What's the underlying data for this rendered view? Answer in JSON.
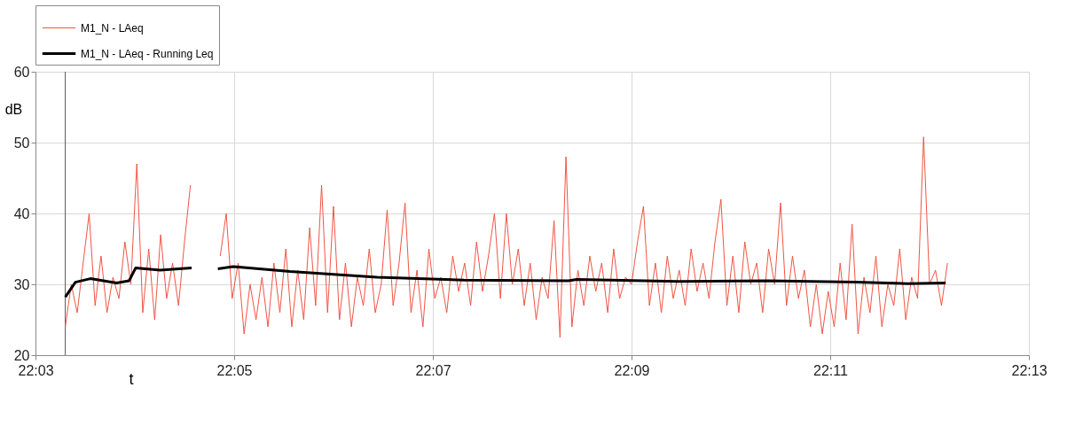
{
  "chart_data": {
    "type": "line",
    "xlabel": "t",
    "ylabel": "dB",
    "xlim": [
      22.05,
      22.216667
    ],
    "ylim": [
      20,
      60
    ],
    "xticks": [
      {
        "value": 22.05,
        "label": "22:03"
      },
      {
        "value": 22.083333,
        "label": "22:05"
      },
      {
        "value": 22.116667,
        "label": "22:07"
      },
      {
        "value": 22.15,
        "label": "22:09"
      },
      {
        "value": 22.183333,
        "label": "22:11"
      },
      {
        "value": 22.216667,
        "label": "22:13"
      }
    ],
    "yticks": [
      20,
      30,
      40,
      50,
      60
    ],
    "grid": true,
    "legend": "top",
    "line_style": "solid",
    "marker": "none",
    "ref_lines": [
      {
        "axis": "x",
        "value": 22.055,
        "color": "#555555"
      }
    ],
    "series": [
      {
        "name": "M1_N - LAeq",
        "color": "#f05545",
        "x": [
          22.055,
          22.056,
          22.057,
          22.058,
          22.059,
          22.06,
          22.061,
          22.062,
          22.063,
          22.064,
          22.065,
          22.066,
          22.067,
          22.068,
          22.069,
          22.07,
          22.071,
          22.072,
          22.073,
          22.074,
          22.075,
          22.076,
          22.078,
          22.081,
          22.082,
          22.083,
          22.084,
          22.085,
          22.086,
          22.087,
          22.088,
          22.089,
          22.09,
          22.091,
          22.092,
          22.093,
          22.094,
          22.095,
          22.096,
          22.097,
          22.098,
          22.099,
          22.1,
          22.101,
          22.102,
          22.103,
          22.104,
          22.105,
          22.106,
          22.107,
          22.108,
          22.109,
          22.11,
          22.111,
          22.112,
          22.113,
          22.114,
          22.115,
          22.116,
          22.117,
          22.118,
          22.119,
          22.12,
          22.121,
          22.122,
          22.123,
          22.124,
          22.125,
          22.126,
          22.127,
          22.128,
          22.129,
          22.13,
          22.131,
          22.132,
          22.133,
          22.134,
          22.135,
          22.136,
          22.137,
          22.138,
          22.139,
          22.14,
          22.141,
          22.142,
          22.143,
          22.144,
          22.145,
          22.146,
          22.147,
          22.148,
          22.149,
          22.15,
          22.151,
          22.152,
          22.153,
          22.154,
          22.155,
          22.156,
          22.157,
          22.158,
          22.159,
          22.16,
          22.161,
          22.162,
          22.163,
          22.164,
          22.165,
          22.166,
          22.167,
          22.168,
          22.169,
          22.17,
          22.171,
          22.172,
          22.173,
          22.174,
          22.175,
          22.176,
          22.177,
          22.178,
          22.179,
          22.18,
          22.181,
          22.182,
          22.183,
          22.184,
          22.185,
          22.186,
          22.187,
          22.188,
          22.189,
          22.19,
          22.191,
          22.192,
          22.193,
          22.194,
          22.195,
          22.196,
          22.197,
          22.198,
          22.199,
          22.2,
          22.201,
          22.202,
          22.203
        ],
        "values": [
          24,
          30,
          26,
          33,
          40,
          27,
          34,
          26,
          31,
          28,
          36,
          30,
          47,
          26,
          35,
          25,
          37,
          28,
          33,
          27,
          36,
          44,
          null,
          34,
          40,
          28,
          33,
          23,
          30,
          25,
          31,
          24,
          33,
          26,
          35,
          24,
          32,
          25,
          38,
          27,
          44,
          26,
          41,
          25,
          33,
          24,
          31,
          27,
          35,
          26,
          30,
          40.5,
          27,
          33,
          41.5,
          26,
          32,
          24,
          35,
          28,
          31,
          26,
          34,
          29,
          33,
          27,
          36,
          29,
          34,
          40,
          28,
          40,
          30,
          35,
          27,
          33,
          25,
          31,
          28,
          39,
          22.5,
          48,
          24,
          32,
          27,
          34,
          29,
          33,
          26,
          35,
          28,
          31,
          30,
          36,
          41,
          27,
          33,
          26,
          34,
          28,
          32,
          27,
          35,
          29,
          33,
          28,
          36,
          42,
          27,
          34,
          26,
          36,
          30,
          33,
          26,
          35,
          30,
          41.5,
          27,
          34,
          28,
          32,
          24,
          30,
          23,
          29,
          24,
          33,
          25,
          38.5,
          23,
          31,
          26,
          34,
          24,
          30,
          27,
          35,
          25,
          31,
          28,
          50.8,
          30,
          32,
          27,
          33
        ]
      },
      {
        "name": "M1_N - LAeq - Running Leq",
        "color": "#000000",
        "x": [
          22.055,
          22.0567,
          22.0592,
          22.0636,
          22.0657,
          22.0668,
          22.0709,
          22.0762,
          22.078,
          22.0806,
          22.0832,
          22.0927,
          22.1073,
          22.1219,
          22.1394,
          22.1408,
          22.1583,
          22.1729,
          22.1875,
          22.1963,
          22.2027
        ],
        "values": [
          28.2,
          30.3,
          30.8,
          30.2,
          30.5,
          32.3,
          32,
          32.3,
          null,
          32.2,
          32.5,
          31.8,
          31,
          30.6,
          30.5,
          30.7,
          30.4,
          30.5,
          30.3,
          30.1,
          30.2
        ]
      }
    ]
  }
}
